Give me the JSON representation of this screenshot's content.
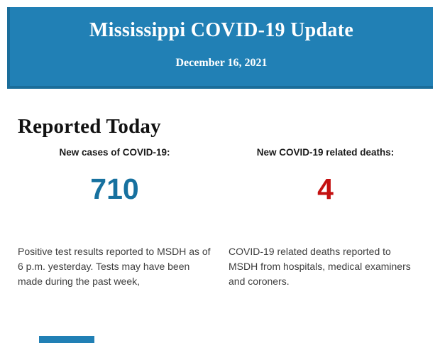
{
  "header": {
    "title": "Mississippi COVID-19 Update",
    "date": "December 16, 2021",
    "bg_color": "#2180b5",
    "edge_color": "#1a6d9a",
    "text_color": "#ffffff"
  },
  "section": {
    "title": "Reported Today"
  },
  "stats": [
    {
      "label": "New cases of COVID-19:",
      "value": "710",
      "value_color": "#17719f",
      "description": "Positive test results reported to MSDH as of 6 p.m. yesterday. Tests may have been made during the past week,"
    },
    {
      "label": "New COVID-19 related deaths:",
      "value": "4",
      "value_color": "#c41111",
      "description": "COVID-19 related deaths reported to MSDH from hospitals, medical examiners and coroners."
    }
  ],
  "footer": {
    "partial_bar_color": "#2180b5"
  }
}
